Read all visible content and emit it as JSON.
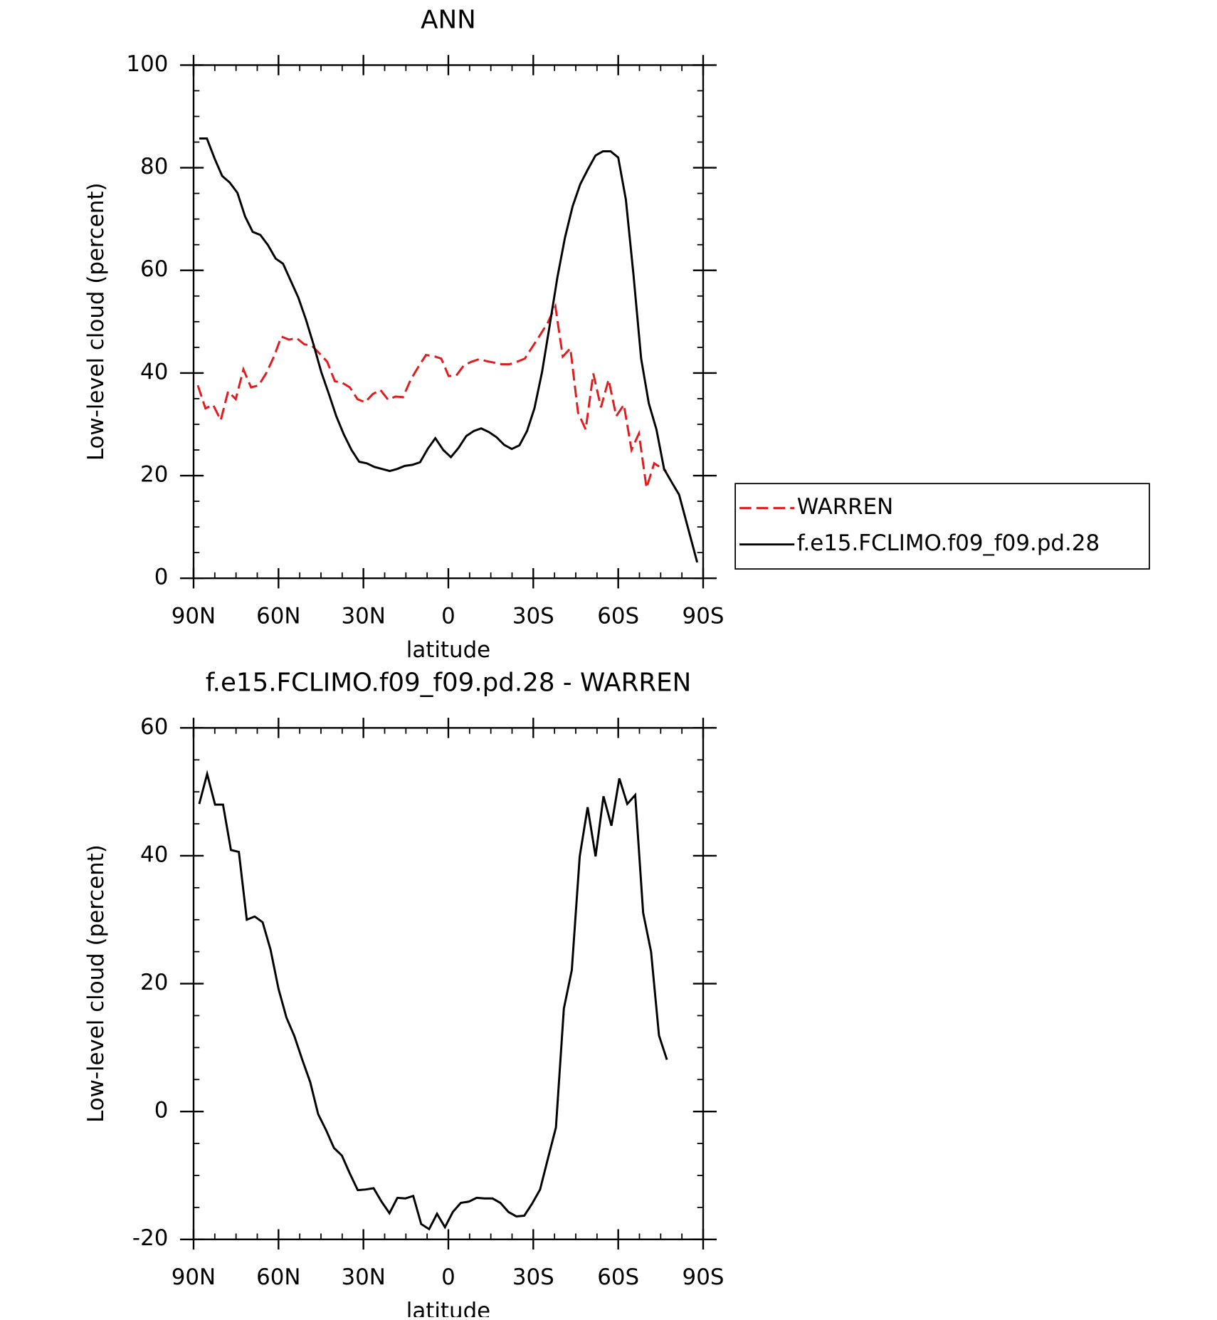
{
  "chart_data": [
    {
      "type": "line",
      "title": "ANN",
      "xlabel": "latitude",
      "ylabel": "Low-level cloud (percent)",
      "xlim": [
        90,
        -90
      ],
      "ylim": [
        0,
        100
      ],
      "xticks": [
        {
          "value": 90,
          "label": "90N"
        },
        {
          "value": 60,
          "label": "60N"
        },
        {
          "value": 30,
          "label": "30N"
        },
        0,
        {
          "value": -30,
          "label": "30S"
        },
        {
          "value": -60,
          "label": "60S"
        },
        {
          "value": -90,
          "label": "90S"
        }
      ],
      "yticks": [
        0,
        20,
        40,
        60,
        80,
        100
      ],
      "legend": "right",
      "series": [
        {
          "name": "WARREN",
          "color": "#e41a1c",
          "style": "dashed",
          "x": [
            88.5,
            85.8,
            83.1,
            80.4,
            77.8,
            75.1,
            72.4,
            69.7,
            67.0,
            64.3,
            61.6,
            59.0,
            56.3,
            53.6,
            50.9,
            48.2,
            45.5,
            42.8,
            40.1,
            37.5,
            34.8,
            32.1,
            29.4,
            26.7,
            24.0,
            21.3,
            18.7,
            16.0,
            13.3,
            10.6,
            7.9,
            5.2,
            2.5,
            -0.1,
            -2.8,
            -5.5,
            -8.2,
            -10.9,
            -13.6,
            -16.3,
            -18.9,
            -21.6,
            -24.3,
            -27.0,
            -29.7,
            -32.4,
            -35.1,
            -37.8,
            -40.4,
            -43.1,
            -45.8,
            -48.5,
            -51.2,
            -53.9,
            -56.6,
            -59.3,
            -62.0,
            -64.7,
            -67.3,
            -70.0,
            -72.7,
            -76.9
          ],
          "values": [
            37.6,
            33.1,
            33.8,
            30.8,
            36.4,
            34.9,
            40.7,
            37.2,
            37.6,
            40.0,
            43.2,
            47.1,
            46.5,
            46.8,
            45.6,
            45.3,
            43.8,
            42.2,
            38.4,
            38.1,
            37.2,
            34.9,
            34.3,
            35.9,
            36.7,
            34.8,
            35.4,
            35.3,
            38.7,
            41.2,
            43.5,
            43.3,
            42.8,
            39.4,
            39.5,
            41.5,
            42.2,
            42.7,
            42.3,
            42.0,
            41.7,
            41.7,
            42.2,
            42.8,
            45.1,
            47.4,
            49.8,
            53.0,
            43.2,
            44.8,
            32.3,
            29.0,
            39.9,
            33.3,
            38.7,
            31.6,
            33.8,
            25.0,
            28.2,
            17.6,
            22.4,
            20.9
          ]
        },
        {
          "name": "f.e15.FCLIMO.f09_f09.pd.28",
          "color": "#000000",
          "style": "solid",
          "x": [
            88.0,
            85.3,
            82.5,
            79.9,
            77.2,
            74.5,
            71.8,
            69.1,
            66.4,
            63.7,
            61.0,
            58.4,
            55.7,
            53.0,
            50.3,
            47.6,
            44.9,
            42.2,
            39.6,
            36.9,
            34.2,
            31.5,
            28.8,
            26.1,
            23.4,
            20.7,
            18.1,
            15.4,
            12.7,
            10.0,
            7.3,
            4.6,
            1.8,
            -0.9,
            -3.6,
            -6.3,
            -9.0,
            -11.6,
            -14.3,
            -17.0,
            -19.7,
            -22.4,
            -25.1,
            -27.8,
            -30.4,
            -33.1,
            -35.8,
            -38.5,
            -41.2,
            -43.9,
            -46.6,
            -49.3,
            -52.0,
            -54.6,
            -57.3,
            -60.0,
            -62.7,
            -65.4,
            -68.1,
            -70.8,
            -73.5,
            -76.2,
            -78.8,
            -81.5,
            -87.9
          ],
          "values": [
            85.7,
            85.7,
            81.7,
            78.4,
            77.1,
            75.1,
            70.5,
            67.5,
            66.9,
            64.9,
            62.3,
            61.3,
            58.0,
            54.7,
            50.4,
            45.5,
            40.2,
            35.9,
            31.6,
            28.0,
            25.0,
            22.7,
            22.4,
            21.7,
            21.3,
            20.9,
            21.3,
            21.9,
            22.1,
            22.6,
            25.2,
            27.3,
            25.0,
            23.6,
            25.4,
            27.7,
            28.7,
            29.2,
            28.5,
            27.5,
            26.0,
            25.2,
            25.9,
            28.7,
            33.1,
            40.2,
            49.3,
            58.6,
            66.4,
            72.5,
            76.8,
            79.7,
            82.4,
            83.2,
            83.2,
            82.0,
            73.8,
            59.1,
            42.8,
            34.1,
            29.0,
            21.3,
            18.8,
            16.3,
            3.1
          ]
        }
      ]
    },
    {
      "type": "line",
      "title": "f.e15.FCLIMO.f09_f09.pd.28 - WARREN",
      "xlabel": "latitude",
      "ylabel": "Low-level cloud (percent)",
      "xlim": [
        90,
        -90
      ],
      "ylim": [
        -20,
        60
      ],
      "xticks": [
        {
          "value": 90,
          "label": "90N"
        },
        {
          "value": 60,
          "label": "60N"
        },
        {
          "value": 30,
          "label": "30N"
        },
        0,
        {
          "value": -30,
          "label": "30S"
        },
        {
          "value": -60,
          "label": "60S"
        },
        {
          "value": -90,
          "label": "90S"
        }
      ],
      "yticks": [
        -20,
        0,
        20,
        40,
        60
      ],
      "color": "#000000",
      "x": [
        88,
        85.2,
        82.4,
        79.6,
        76.8,
        74,
        71.2,
        68.4,
        65.6,
        62.8,
        60,
        57.2,
        54.4,
        51.6,
        48.8,
        46,
        43.2,
        40.4,
        37.6,
        34.8,
        32,
        29.2,
        26.4,
        23.6,
        20.8,
        18,
        15.2,
        12.4,
        9.6,
        6.8,
        4,
        1.2,
        -1.6,
        -4.4,
        -7.2,
        -10,
        -12.8,
        -15.6,
        -18.4,
        -21.2,
        -24,
        -26.8,
        -29.6,
        -32.4,
        -35.2,
        -38,
        -40.8,
        -43.6,
        -46.4,
        -49.2,
        -52,
        -54.8,
        -57.6,
        -60.4,
        -63.2,
        -66,
        -68.8,
        -71.6,
        -74.4,
        -77.2
      ],
      "values": [
        48.1,
        52.8,
        48.0,
        48.0,
        40.9,
        40.6,
        30.0,
        30.5,
        29.6,
        25.3,
        19.2,
        14.7,
        11.8,
        8.1,
        4.6,
        -0.4,
        -2.9,
        -5.7,
        -6.9,
        -9.7,
        -12.3,
        -12.2,
        -12.0,
        -14.1,
        -15.9,
        -13.5,
        -13.6,
        -13.2,
        -17.6,
        -18.4,
        -16.0,
        -18.1,
        -15.7,
        -14.3,
        -14.1,
        -13.5,
        -13.6,
        -13.6,
        -14.3,
        -15.7,
        -16.4,
        -16.3,
        -14.4,
        -12.2,
        -7.3,
        -2.5,
        16.1,
        22.1,
        39.9,
        47.6,
        39.9,
        49.3,
        44.7,
        52.1,
        48.1,
        49.5,
        31.1,
        25.0,
        11.9,
        8.1
      ]
    }
  ]
}
